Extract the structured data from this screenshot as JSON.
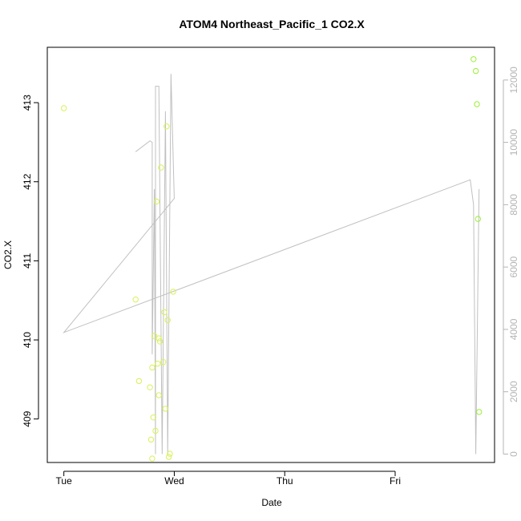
{
  "chart_data": {
    "type": "scatter",
    "title": "ATOM4 Northeast_Pacific_1 CO2.X",
    "xlabel": "Date",
    "ylabel": "CO2.X",
    "x_ticks": [
      {
        "label": "Tue",
        "day": 0
      },
      {
        "label": "Wed",
        "day": 1
      },
      {
        "label": "Thu",
        "day": 2
      },
      {
        "label": "Fri",
        "day": 3
      }
    ],
    "xlim_days": [
      -0.15,
      3.9
    ],
    "ylim": [
      408.45,
      413.7
    ],
    "y_ticks": [
      409,
      410,
      411,
      412,
      413
    ],
    "y2_ticks": [
      0,
      2000,
      4000,
      6000,
      8000,
      10000,
      12000
    ],
    "y2lim": [
      -270,
      13050
    ],
    "grid": false,
    "colors": {
      "point_early": "#d8f255",
      "point_late": "#9af037",
      "line": "#c0c0c0",
      "right_axis": "#b4b4b4",
      "axis": "#000000"
    },
    "series": [
      {
        "type": "points",
        "points": [
          [
            0.0,
            412.93
          ],
          [
            0.65,
            410.51
          ],
          [
            0.68,
            409.48
          ],
          [
            0.78,
            409.4
          ],
          [
            0.79,
            408.74
          ],
          [
            0.8,
            409.65
          ],
          [
            0.8,
            408.5
          ],
          [
            0.81,
            409.02
          ],
          [
            0.82,
            410.05
          ],
          [
            0.83,
            408.85
          ],
          [
            0.84,
            411.75
          ],
          [
            0.85,
            409.7
          ],
          [
            0.86,
            409.3
          ],
          [
            0.86,
            410.02
          ],
          [
            0.87,
            409.98
          ],
          [
            0.88,
            412.18
          ],
          [
            0.9,
            409.72
          ],
          [
            0.91,
            410.35
          ],
          [
            0.92,
            409.13
          ],
          [
            0.93,
            412.7
          ],
          [
            0.94,
            410.25
          ],
          [
            0.95,
            408.52
          ],
          [
            0.96,
            408.56
          ],
          [
            0.99,
            410.61
          ],
          [
            3.71,
            413.55
          ],
          [
            3.73,
            413.4
          ],
          [
            3.74,
            412.98
          ],
          [
            3.75,
            411.53
          ],
          [
            3.76,
            409.09
          ]
        ]
      },
      {
        "type": "line",
        "axis": "right",
        "points": [
          [
            0.65,
            9700
          ],
          [
            0.78,
            10050
          ],
          [
            0.8,
            10000
          ],
          [
            0.8,
            3200
          ],
          [
            0.82,
            8500
          ],
          [
            0.83,
            0
          ],
          [
            0.83,
            11800
          ],
          [
            0.86,
            11800
          ],
          [
            0.89,
            0
          ],
          [
            0.92,
            11000
          ],
          [
            0.94,
            0
          ],
          [
            0.97,
            12200
          ],
          [
            1.0,
            8200
          ],
          [
            0.0,
            3900
          ],
          [
            3.68,
            8800
          ],
          [
            3.71,
            8000
          ],
          [
            3.73,
            0
          ],
          [
            3.76,
            8500
          ]
        ]
      }
    ]
  }
}
